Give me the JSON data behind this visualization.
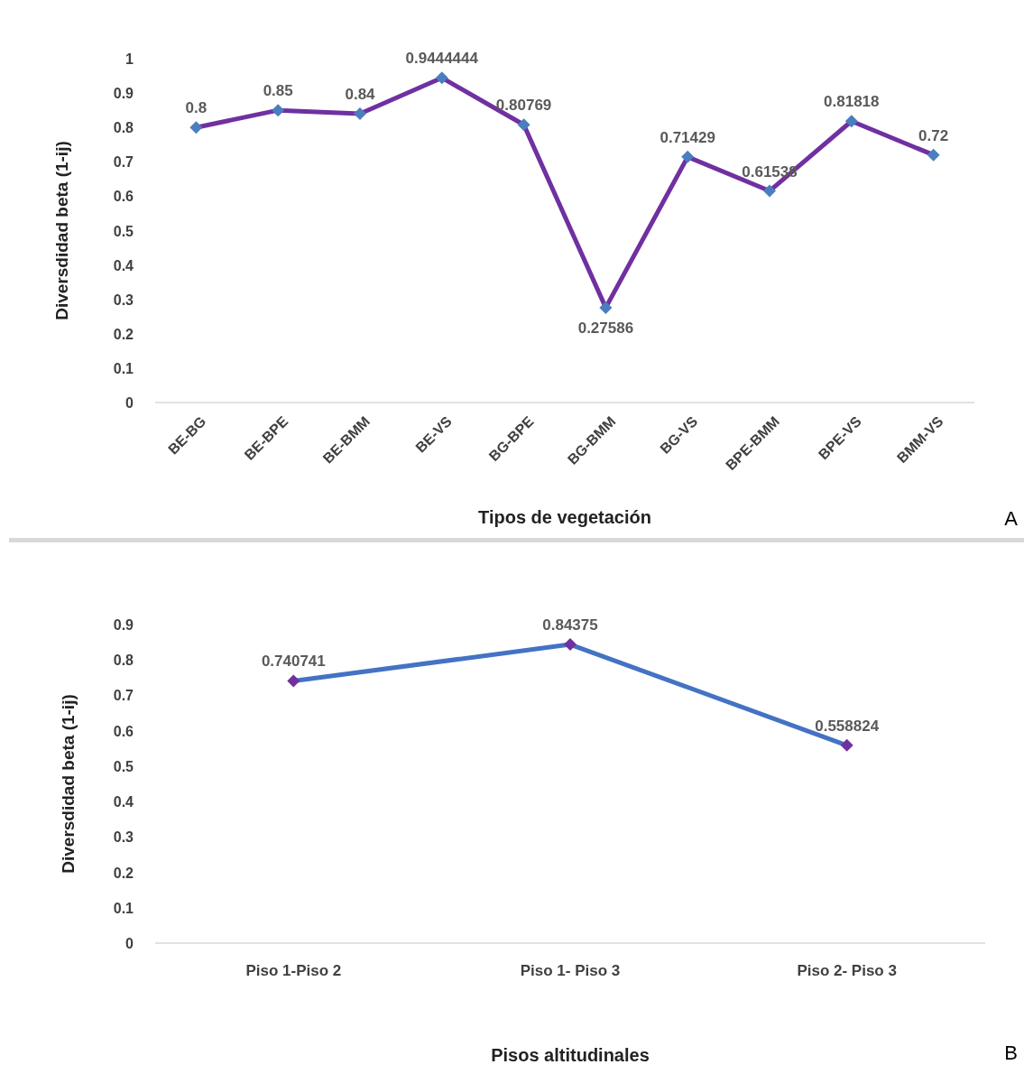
{
  "chart_data": [
    {
      "type": "line",
      "xlabel": "Tipos de vegetación",
      "ylabel": "Diversdidad beta (1-ij)",
      "categories": [
        "BE-BG",
        "BE-BPE",
        "BE-BMM",
        "BE-VS",
        "BG-BPE",
        "BG-BMM",
        "BG-VS",
        "BPE-BMM",
        "BPE-VS",
        "BMM-VS"
      ],
      "series": [
        {
          "color": "#7030a0",
          "colors": [
            "#4a7ebf",
            "#4a7ebf",
            "#4a7ebf",
            "#4a7ebf",
            "#4a7ebf",
            "#4a7ebf",
            "#4a7ebf",
            "#4a7ebf",
            "#4a7ebf",
            "#4a7ebf"
          ],
          "values": [
            0.8,
            0.85,
            0.84,
            0.9444444,
            0.80769,
            0.27586,
            0.71429,
            0.61538,
            0.81818,
            0.72
          ]
        }
      ],
      "ylim": [
        0,
        1
      ],
      "yticks": [
        0,
        0.1,
        0.2,
        0.3,
        0.4,
        0.5,
        0.6,
        0.7,
        0.8,
        0.9,
        1
      ],
      "grid": false,
      "marker": "diamond",
      "line_style": "solid",
      "data_labels": true,
      "annotations": [
        "A"
      ]
    },
    {
      "type": "line",
      "xlabel": "Pisos altitudinales",
      "ylabel": "Diversdidad beta (1-ij)",
      "categories": [
        "Piso 1-Piso 2",
        "Piso 1- Piso 3",
        "Piso 2- Piso 3"
      ],
      "series": [
        {
          "color": "#4472c4",
          "colors": [
            "#7030a0",
            "#7030a0",
            "#7030a0"
          ],
          "values": [
            0.740741,
            0.84375,
            0.558824
          ]
        }
      ],
      "ylim": [
        0,
        0.9
      ],
      "yticks": [
        0,
        0.1,
        0.2,
        0.3,
        0.4,
        0.5,
        0.6,
        0.7,
        0.8,
        0.9
      ],
      "grid": false,
      "marker": "diamond",
      "line_style": "solid",
      "data_labels": true,
      "annotations": [
        "B"
      ]
    }
  ]
}
